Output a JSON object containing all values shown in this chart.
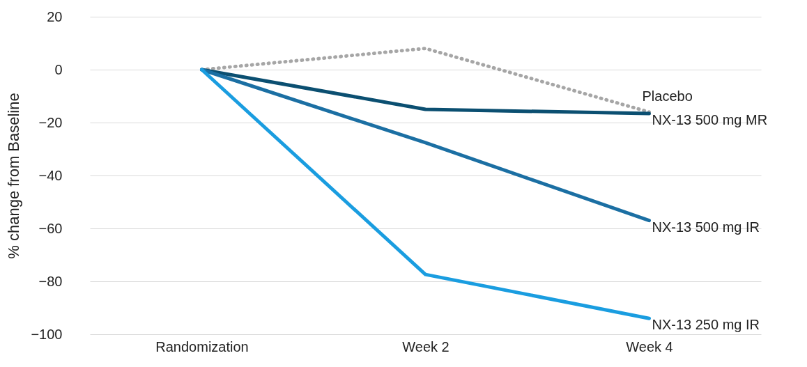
{
  "chart_data": {
    "type": "line",
    "ylabel": "% change from Baseline",
    "categories": [
      "Randomization",
      "Week 2",
      "Week 4"
    ],
    "series": [
      {
        "name": "Placebo",
        "color": "#a6a6a6",
        "line_style": "dotted",
        "values": [
          0,
          8,
          -16
        ]
      },
      {
        "name": "NX-13 500 mg MR",
        "color": "#0b4f71",
        "line_style": "solid",
        "values": [
          0,
          -15,
          -16.6
        ]
      },
      {
        "name": "NX-13 500 mg IR",
        "color": "#1b6fa3",
        "line_style": "solid",
        "values": [
          0,
          -27.6,
          -57
        ]
      },
      {
        "name": "NX-13 250 mg IR",
        "color": "#1a9de0",
        "line_style": "solid",
        "values": [
          0,
          -77.4,
          -94
        ]
      }
    ],
    "ylim": [
      -100,
      20
    ],
    "yticks": [
      -100,
      -80,
      -60,
      -40,
      -20,
      0,
      20
    ],
    "grid": "y",
    "legend": false,
    "marker": "none"
  }
}
